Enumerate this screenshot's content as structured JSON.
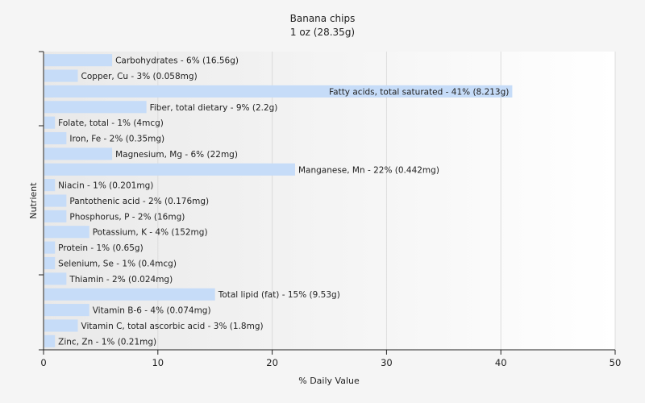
{
  "chart_data": {
    "type": "bar",
    "orientation": "horizontal",
    "title": "Banana chips",
    "subtitle": "1 oz (28.35g)",
    "xlabel": "% Daily Value",
    "ylabel": "Nutrient",
    "xlim": [
      0,
      50
    ],
    "xticks": [
      "0",
      "10",
      "20",
      "30",
      "40",
      "50"
    ],
    "grid": true,
    "bar_color": "#c6dcf8",
    "categories": [
      "Carbohydrates",
      "Copper, Cu",
      "Fatty acids, total saturated",
      "Fiber, total dietary",
      "Folate, total",
      "Iron, Fe",
      "Magnesium, Mg",
      "Manganese, Mn",
      "Niacin",
      "Pantothenic acid",
      "Phosphorus, P",
      "Potassium, K",
      "Protein",
      "Selenium, Se",
      "Thiamin",
      "Total lipid (fat)",
      "Vitamin B-6",
      "Vitamin C, total ascorbic acid",
      "Zinc, Zn"
    ],
    "values": [
      6,
      3,
      41,
      9,
      1,
      2,
      6,
      22,
      1,
      2,
      2,
      4,
      1,
      1,
      2,
      15,
      4,
      3,
      1
    ],
    "data_labels": [
      "Carbohydrates - 6% (16.56g)",
      "Copper, Cu - 3% (0.058mg)",
      "Fatty acids, total saturated - 41% (8.213g)",
      "Fiber, total dietary - 9% (2.2g)",
      "Folate, total - 1% (4mcg)",
      "Iron, Fe - 2% (0.35mg)",
      "Magnesium, Mg - 6% (22mg)",
      "Manganese, Mn - 22% (0.442mg)",
      "Niacin - 1% (0.201mg)",
      "Pantothenic acid - 2% (0.176mg)",
      "Phosphorus, P - 2% (16mg)",
      "Potassium, K - 4% (152mg)",
      "Protein - 1% (0.65g)",
      "Selenium, Se - 1% (0.4mcg)",
      "Thiamin - 2% (0.024mg)",
      "Total lipid (fat) - 15% (9.53g)",
      "Vitamin B-6 - 4% (0.074mg)",
      "Vitamin C, total ascorbic acid - 3% (1.8mg)",
      "Zinc, Zn - 1% (0.21mg)"
    ]
  }
}
